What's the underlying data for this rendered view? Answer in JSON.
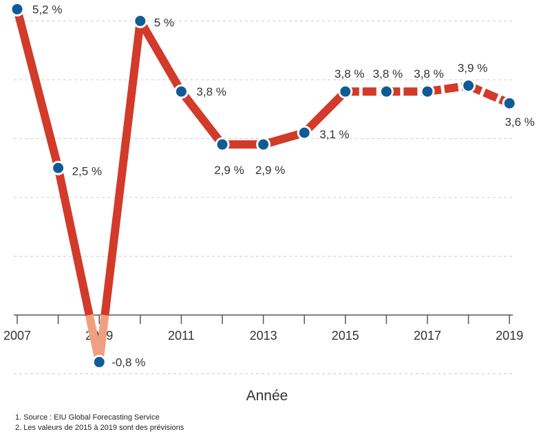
{
  "chart_data": {
    "type": "line",
    "xlabel": "Année",
    "x": [
      2007,
      2008,
      2009,
      2010,
      2011,
      2012,
      2013,
      2014,
      2015,
      2016,
      2017,
      2018,
      2019
    ],
    "x_tick_labels": [
      "2007",
      "2009",
      "2011",
      "2013",
      "2015",
      "2017",
      "2019"
    ],
    "values": [
      5.2,
      2.5,
      -0.8,
      5.0,
      3.8,
      2.9,
      2.9,
      3.1,
      3.8,
      3.8,
      3.8,
      3.9,
      3.6
    ],
    "value_labels": [
      "5,2 %",
      "2,5 %",
      "-0,8 %",
      "5 %",
      "3,8 %",
      "2,9 %",
      "2,9 %",
      "3,1 %",
      "3,8 %",
      "3,8 %",
      "3,8 %",
      "3,9 %",
      "3,6 %"
    ],
    "forecast_from": 2015,
    "ylim": [
      -1,
      5.5
    ],
    "grid": true,
    "colors": {
      "line": "#d23a2a",
      "line_below_zero": "#f0a080",
      "point": "#0e5c96",
      "grid": "#cccccc",
      "axis": "#555555"
    }
  },
  "footnotes": [
    "1. Source : EIU Global Forecasting Service",
    "2. Les valeurs de 2015 à 2019 sont des prévisions"
  ]
}
